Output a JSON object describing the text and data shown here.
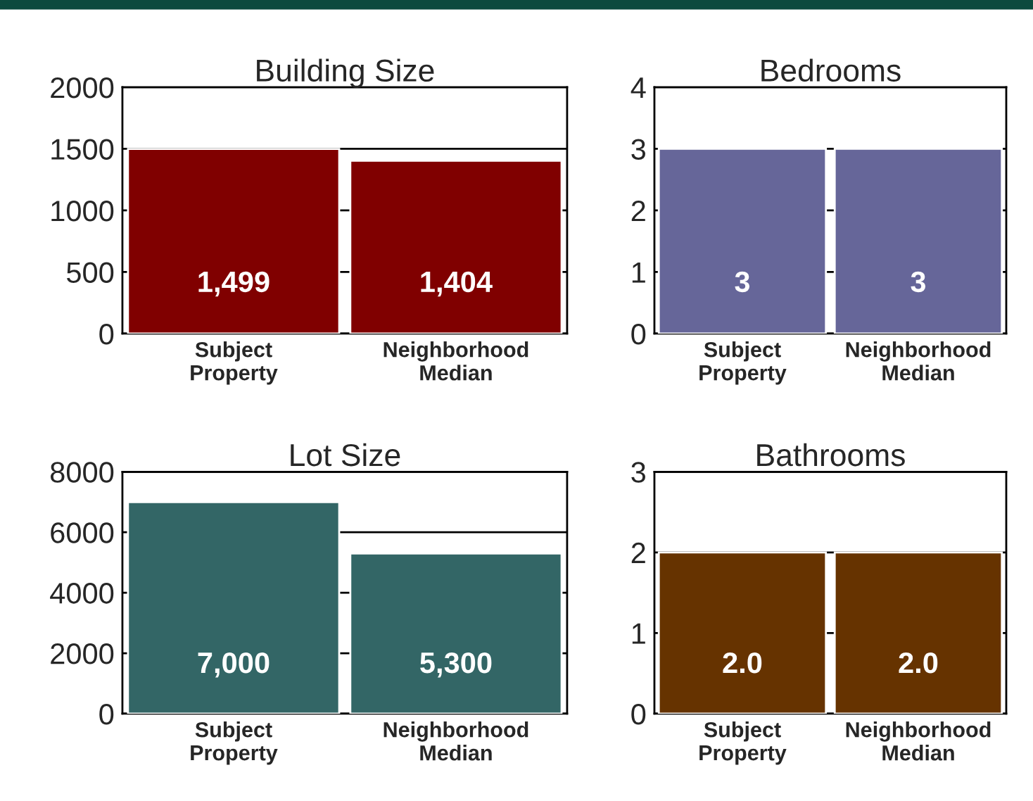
{
  "chart_data": [
    {
      "type": "bar",
      "title": "Building Size",
      "categories": [
        "Subject\nProperty",
        "Neighborhood\nMedian"
      ],
      "values": [
        1499,
        1404
      ],
      "color": "#800000",
      "value_labels": [
        "1,499",
        "1,404"
      ],
      "ylim": [
        0,
        2000
      ],
      "yticks": [
        0,
        500,
        1000,
        1500,
        2000
      ],
      "grid": "y"
    },
    {
      "type": "bar",
      "title": "Bedrooms",
      "categories": [
        "Subject\nProperty",
        "Neighborhood\nMedian"
      ],
      "values": [
        3,
        3
      ],
      "color": "#666699",
      "value_labels": [
        "3",
        "3"
      ],
      "ylim": [
        0,
        4
      ],
      "yticks": [
        0,
        1,
        2,
        3,
        4
      ],
      "grid": "y"
    },
    {
      "type": "bar",
      "title": "Lot Size",
      "categories": [
        "Subject\nProperty",
        "Neighborhood\nMedian"
      ],
      "values": [
        7000,
        5300
      ],
      "color": "#336666",
      "value_labels": [
        "7,000",
        "5,300"
      ],
      "ylim": [
        0,
        8000
      ],
      "yticks": [
        0,
        2000,
        4000,
        6000,
        8000
      ],
      "grid": "y"
    },
    {
      "type": "bar",
      "title": "Bathrooms",
      "categories": [
        "Subject\nProperty",
        "Neighborhood\nMedian"
      ],
      "values": [
        2,
        2
      ],
      "color": "#663300",
      "value_labels": [
        "2.0",
        "2.0"
      ],
      "ylim": [
        0,
        3
      ],
      "yticks": [
        0,
        1,
        2,
        3
      ],
      "grid": "y"
    }
  ]
}
